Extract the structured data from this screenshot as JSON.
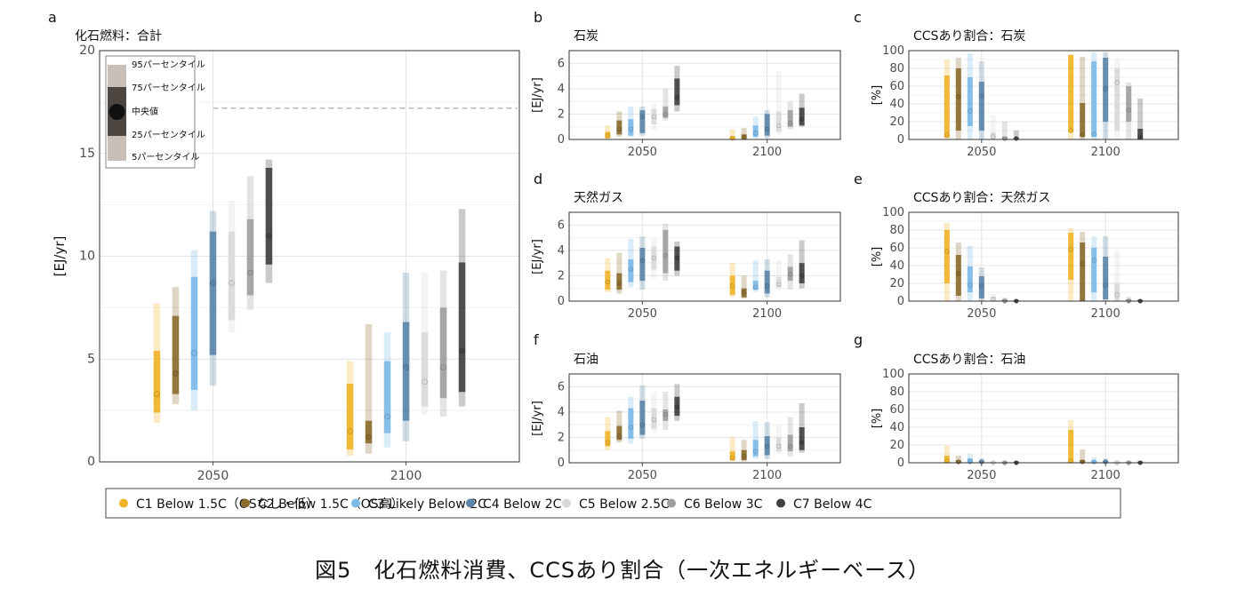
{
  "figure": {
    "caption": "図5　化石燃料消費、CCSあり割合（一次エネルギーベース）",
    "legend": [
      {
        "label": "C1 Below 1.5C（OSなし・低）",
        "color": "#f0b429"
      },
      {
        "label": "C2 Below 1.5C（OS高）",
        "color": "#8b6b2e"
      },
      {
        "label": "C3 Likely Below 2C",
        "color": "#7cb9e8"
      },
      {
        "label": "C4 Below 2C",
        "color": "#5b84a8"
      },
      {
        "label": "C5 Below 2.5C",
        "color": "#d9d9d9"
      },
      {
        "label": "C6 Below 3C",
        "color": "#9e9e9e"
      },
      {
        "label": "C7 Below 4C",
        "color": "#404040"
      }
    ],
    "inset_legend": {
      "p95": "95パーセンタイル",
      "p75": "75パーセンタイル",
      "median": "中央値",
      "p25": "25パーセンタイル",
      "p5": "5パーセンタイル"
    }
  },
  "chart_data": [
    {
      "panel": "a",
      "type": "bar",
      "title": "化石燃料：合計",
      "ylabel": "[EJ/yr]",
      "ylim": [
        0,
        20
      ],
      "yticks": [
        0,
        5,
        10,
        15,
        20
      ],
      "categories": [
        "2050",
        "2100"
      ],
      "reference_line": 17.2,
      "grid": true,
      "series": [
        {
          "name": "C1 Below 1.5C（OSなし・低）",
          "values": [
            [
              1.9,
              2.4,
              3.3,
              5.4,
              7.7
            ],
            [
              0.3,
              0.6,
              1.5,
              3.8,
              4.9
            ]
          ]
        },
        {
          "name": "C2 Below 1.5C（OS高）",
          "values": [
            [
              2.8,
              3.3,
              4.3,
              7.1,
              8.5
            ],
            [
              0.4,
              0.9,
              1.2,
              2.0,
              6.7
            ]
          ]
        },
        {
          "name": "C3 Likely Below 2C",
          "values": [
            [
              2.5,
              3.5,
              5.3,
              9.0,
              10.3
            ],
            [
              0.7,
              1.4,
              2.2,
              4.9,
              6.3
            ]
          ]
        },
        {
          "name": "C4 Below 2C",
          "values": [
            [
              3.7,
              5.2,
              8.7,
              11.2,
              12.2
            ],
            [
              1.0,
              2.0,
              4.6,
              6.8,
              9.2
            ]
          ]
        },
        {
          "name": "C5 Below 2.5C",
          "values": [
            [
              6.3,
              6.9,
              8.7,
              11.2,
              12.7
            ],
            [
              2.3,
              2.7,
              3.9,
              6.3,
              9.2
            ]
          ]
        },
        {
          "name": "C6 Below 3C",
          "values": [
            [
              7.4,
              8.1,
              9.2,
              11.8,
              13.9
            ],
            [
              2.2,
              3.1,
              4.6,
              7.5,
              9.3
            ]
          ]
        },
        {
          "name": "C7 Below 4C",
          "values": [
            [
              8.7,
              9.6,
              11.0,
              14.3,
              14.7
            ],
            [
              2.7,
              3.4,
              5.4,
              9.7,
              12.3
            ]
          ]
        }
      ]
    },
    {
      "panel": "b",
      "type": "bar",
      "title": "石炭",
      "ylabel": "[EJ/yr]",
      "ylim": [
        0,
        7
      ],
      "yticks": [
        0,
        2,
        4,
        6
      ],
      "categories": [
        "2050",
        "2100"
      ],
      "grid": true,
      "series": [
        {
          "name": "C1 Below 1.5C（OSなし・低）",
          "values": [
            [
              0.05,
              0.1,
              0.3,
              0.6,
              1.1
            ],
            [
              0,
              0.02,
              0.1,
              0.25,
              0.8
            ]
          ]
        },
        {
          "name": "C2 Below 1.5C（OS高）",
          "values": [
            [
              0.2,
              0.4,
              0.8,
              1.5,
              2.2
            ],
            [
              0,
              0.05,
              0.15,
              0.4,
              0.9
            ]
          ]
        },
        {
          "name": "C3 Likely Below 2C",
          "values": [
            [
              0.2,
              0.3,
              0.8,
              1.6,
              2.6
            ],
            [
              0.1,
              0.2,
              0.5,
              1.1,
              1.8
            ]
          ]
        },
        {
          "name": "C4 Below 2C",
          "values": [
            [
              0.3,
              0.5,
              1.8,
              2.3,
              2.6
            ],
            [
              0.1,
              0.3,
              0.8,
              2.0,
              2.3
            ]
          ]
        },
        {
          "name": "C5 Below 2.5C",
          "values": [
            [
              0.8,
              1.2,
              1.8,
              2.4,
              2.8
            ],
            [
              0.4,
              0.6,
              1.1,
              2.2,
              5.4
            ]
          ]
        },
        {
          "name": "C6 Below 3C",
          "values": [
            [
              1.5,
              1.7,
              2.0,
              2.6,
              4.0
            ],
            [
              0.8,
              1.0,
              1.3,
              2.3,
              3.0
            ]
          ]
        },
        {
          "name": "C7 Below 4C",
          "values": [
            [
              2.2,
              2.7,
              3.3,
              4.8,
              5.8
            ],
            [
              1.0,
              1.1,
              1.6,
              2.5,
              3.6
            ]
          ]
        }
      ]
    },
    {
      "panel": "c",
      "type": "bar",
      "title": "CCSあり割合：石炭",
      "ylabel": "[%]",
      "ylim": [
        0,
        100
      ],
      "yticks": [
        0,
        20,
        40,
        60,
        80,
        100
      ],
      "categories": [
        "2050",
        "2100"
      ],
      "grid": true,
      "series": [
        {
          "name": "C1 Below 1.5C（OSなし・低）",
          "values": [
            [
              0,
              2,
              5,
              72,
              90
            ],
            [
              0,
              8,
              10,
              95,
              96
            ]
          ]
        },
        {
          "name": "C2 Below 1.5C（OS高）",
          "values": [
            [
              0,
              10,
              48,
              80,
              92
            ],
            [
              0,
              3,
              5,
              41,
              93
            ]
          ]
        },
        {
          "name": "C3 Likely Below 2C",
          "values": [
            [
              0,
              15,
              32,
              70,
              97
            ],
            [
              0,
              3,
              6,
              88,
              98
            ]
          ]
        },
        {
          "name": "C4 Below 2C",
          "values": [
            [
              0,
              10,
              49,
              65,
              88
            ],
            [
              0,
              20,
              57,
              92,
              98
            ]
          ]
        },
        {
          "name": "C5 Below 2.5C",
          "values": [
            [
              0,
              1,
              3,
              8,
              27
            ],
            [
              0,
              10,
              64,
              80,
              91
            ]
          ]
        },
        {
          "name": "C6 Below 3C",
          "values": [
            [
              0,
              0,
              1,
              3,
              20
            ],
            [
              0,
              20,
              33,
              60,
              64
            ]
          ]
        },
        {
          "name": "C7 Below 4C",
          "values": [
            [
              0,
              0,
              1,
              2,
              10
            ],
            [
              0,
              0,
              2,
              12,
              46
            ]
          ]
        }
      ]
    },
    {
      "panel": "d",
      "type": "bar",
      "title": "天然ガス",
      "ylabel": "[EJ/yr]",
      "ylim": [
        0,
        7
      ],
      "yticks": [
        0,
        2,
        4,
        6
      ],
      "categories": [
        "2050",
        "2100"
      ],
      "grid": true,
      "series": [
        {
          "name": "C1 Below 1.5C（OSなし・低）",
          "values": [
            [
              0.7,
              0.9,
              1.5,
              2.4,
              3.4
            ],
            [
              0.3,
              0.5,
              1.2,
              2.0,
              3.0
            ]
          ]
        },
        {
          "name": "C2 Below 1.5C（OS高）",
          "values": [
            [
              0.6,
              0.9,
              1.4,
              2.2,
              3.8
            ],
            [
              0.2,
              0.3,
              0.7,
              1.0,
              2.0
            ]
          ]
        },
        {
          "name": "C3 Likely Below 2C",
          "values": [
            [
              1.1,
              1.5,
              2.5,
              3.3,
              4.9
            ],
            [
              0.7,
              0.9,
              1.1,
              1.6,
              3.2
            ]
          ]
        },
        {
          "name": "C4 Below 2C",
          "values": [
            [
              0.9,
              1.6,
              3.2,
              4.2,
              5.1
            ],
            [
              0.3,
              0.6,
              1.2,
              2.4,
              3.3
            ]
          ]
        },
        {
          "name": "C5 Below 2.5C",
          "values": [
            [
              1.8,
              2.5,
              3.4,
              4.3,
              4.9
            ],
            [
              0.9,
              1.1,
              1.3,
              1.9,
              3.2
            ]
          ]
        },
        {
          "name": "C6 Below 3C",
          "values": [
            [
              1.6,
              2.2,
              3.6,
              5.6,
              6.1
            ],
            [
              0.9,
              1.6,
              2.1,
              2.7,
              3.7
            ]
          ]
        },
        {
          "name": "C7 Below 4C",
          "values": [
            [
              2.0,
              2.4,
              3.4,
              4.3,
              4.7
            ],
            [
              1.0,
              1.4,
              2.0,
              3.0,
              4.8
            ]
          ]
        }
      ]
    },
    {
      "panel": "e",
      "type": "bar",
      "title": "CCSあり割合：天然ガス",
      "ylabel": "[%]",
      "ylim": [
        0,
        100
      ],
      "yticks": [
        0,
        20,
        40,
        60,
        80,
        100
      ],
      "categories": [
        "2050",
        "2100"
      ],
      "grid": true,
      "series": [
        {
          "name": "C1 Below 1.5C（OSなし・低）",
          "values": [
            [
              0,
              20,
              56,
              80,
              88
            ],
            [
              0,
              24,
              58,
              77,
              82
            ]
          ]
        },
        {
          "name": "C2 Below 1.5C（OS高）",
          "values": [
            [
              0,
              6,
              31,
              52,
              66
            ],
            [
              0,
              0,
              42,
              66,
              78
            ]
          ]
        },
        {
          "name": "C3 Likely Below 2C",
          "values": [
            [
              0,
              10,
              18,
              39,
              62
            ],
            [
              0,
              10,
              46,
              60,
              73
            ]
          ]
        },
        {
          "name": "C4 Below 2C",
          "values": [
            [
              0,
              3,
              17,
              28,
              38
            ],
            [
              0,
              2,
              18,
              50,
              73
            ]
          ]
        },
        {
          "name": "C5 Below 2.5C",
          "values": [
            [
              0,
              0,
              2,
              5,
              8
            ],
            [
              0,
              0,
              7,
              20,
              56
            ]
          ]
        },
        {
          "name": "C6 Below 3C",
          "values": [
            [
              0,
              0,
              0,
              2,
              4
            ],
            [
              0,
              0,
              0,
              2,
              5
            ]
          ]
        },
        {
          "name": "C7 Below 4C",
          "values": [
            [
              0,
              0,
              0,
              1,
              2
            ],
            [
              0,
              0,
              0,
              1,
              2
            ]
          ]
        }
      ]
    },
    {
      "panel": "f",
      "type": "bar",
      "title": "石油",
      "ylabel": "[EJ/yr]",
      "ylim": [
        0,
        7
      ],
      "yticks": [
        0,
        2,
        4,
        6
      ],
      "categories": [
        "2050",
        "2100"
      ],
      "grid": true,
      "series": [
        {
          "name": "C1 Below 1.5C（OSなし・低）",
          "values": [
            [
              1.0,
              1.3,
              1.6,
              2.5,
              3.6
            ],
            [
              0.1,
              0.2,
              0.4,
              0.9,
              2.0
            ]
          ]
        },
        {
          "name": "C2 Below 1.5C（OS高）",
          "values": [
            [
              1.6,
              1.8,
              2.1,
              2.9,
              4.1
            ],
            [
              0.1,
              0.2,
              0.5,
              1.0,
              1.8
            ]
          ]
        },
        {
          "name": "C3 Likely Below 2C",
          "values": [
            [
              1.5,
              1.9,
              2.8,
              4.3,
              5.2
            ],
            [
              0.3,
              0.5,
              0.9,
              1.8,
              3.3
            ]
          ]
        },
        {
          "name": "C4 Below 2C",
          "values": [
            [
              1.9,
              2.2,
              3.0,
              4.9,
              6.1
            ],
            [
              0.3,
              0.6,
              1.3,
              2.1,
              3.2
            ]
          ]
        },
        {
          "name": "C5 Below 2.5C",
          "values": [
            [
              2.4,
              2.7,
              3.4,
              4.3,
              5.6
            ],
            [
              0.7,
              0.9,
              1.3,
              2.0,
              3.0
            ]
          ]
        },
        {
          "name": "C6 Below 3C",
          "values": [
            [
              2.6,
              3.3,
              3.8,
              4.2,
              5.6
            ],
            [
              0.5,
              0.9,
              1.3,
              2.2,
              3.6
            ]
          ]
        },
        {
          "name": "C7 Below 4C",
          "values": [
            [
              3.3,
              3.7,
              4.4,
              5.2,
              6.2
            ],
            [
              0.8,
              1.0,
              1.6,
              2.8,
              4.7
            ]
          ]
        }
      ]
    },
    {
      "panel": "g",
      "type": "bar",
      "title": "CCSあり割合：石油",
      "ylabel": "[%]",
      "ylim": [
        0,
        100
      ],
      "yticks": [
        0,
        20,
        40,
        60,
        80,
        100
      ],
      "categories": [
        "2050",
        "2100"
      ],
      "grid": true,
      "series": [
        {
          "name": "C1 Below 1.5C（OSなし・低）",
          "values": [
            [
              0,
              0,
              2,
              8,
              19
            ],
            [
              0,
              0,
              2,
              37,
              48
            ]
          ]
        },
        {
          "name": "C2 Below 1.5C（OS高）",
          "values": [
            [
              0,
              0,
              1,
              3,
              8
            ],
            [
              0,
              0,
              1,
              3,
              15
            ]
          ]
        },
        {
          "name": "C3 Likely Below 2C",
          "values": [
            [
              0,
              0,
              1,
              5,
              10
            ],
            [
              0,
              0,
              1,
              2,
              6
            ]
          ]
        },
        {
          "name": "C4 Below 2C",
          "values": [
            [
              0,
              0,
              1,
              2,
              5
            ],
            [
              0,
              0,
              1,
              2,
              5
            ]
          ]
        },
        {
          "name": "C5 Below 2.5C",
          "values": [
            [
              0,
              0,
              0,
              1,
              2
            ],
            [
              0,
              0,
              0,
              1,
              2
            ]
          ]
        },
        {
          "name": "C6 Below 3C",
          "values": [
            [
              0,
              0,
              0,
              1,
              2
            ],
            [
              0,
              0,
              0,
              1,
              2
            ]
          ]
        },
        {
          "name": "C7 Below 4C",
          "values": [
            [
              0,
              0,
              0,
              1,
              2
            ],
            [
              0,
              0,
              0,
              1,
              2
            ]
          ]
        }
      ]
    }
  ]
}
